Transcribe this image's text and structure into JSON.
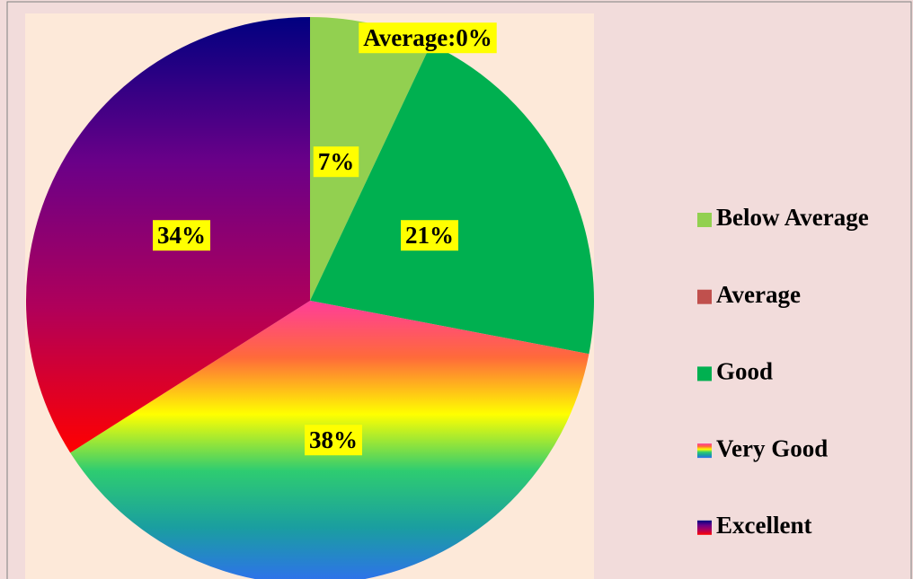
{
  "chart_data": {
    "type": "pie",
    "categories": [
      "Below Average",
      "Average",
      "Good",
      "Very Good",
      "Excellent"
    ],
    "values": [
      7,
      0,
      21,
      38,
      34
    ],
    "value_labels": [
      "7%",
      "Average:0%",
      "21%",
      "38%",
      "34%"
    ],
    "colors": [
      "#92d050",
      "#c0504d",
      "#00b050",
      [
        "#ff3d9a",
        "#ff6a3a",
        "#ffff00",
        "#2ecc71",
        "#1a9ea0",
        "#2f6ff0"
      ],
      [
        "#000080",
        "#6a0088",
        "#b0005a",
        "#ff0000"
      ]
    ],
    "legend": "right"
  }
}
